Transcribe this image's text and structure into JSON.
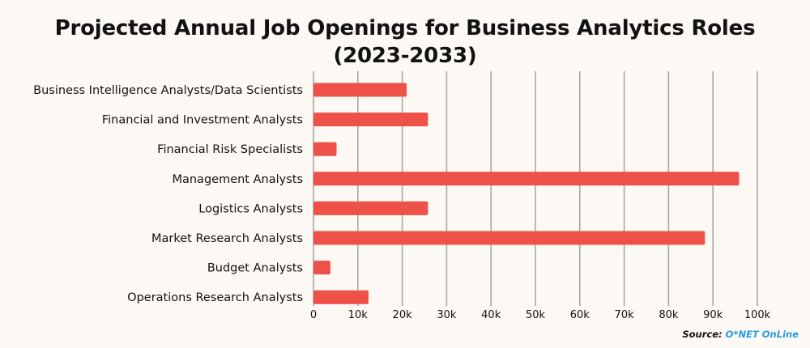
{
  "title_line1": "Projected Annual Job Openings for Business Analytics Roles",
  "title_line2": "(2023-2033)",
  "source_label": "Source:",
  "source_name": "O*NET OnLine",
  "colors": {
    "bar": "#ee5147",
    "grid": "#a8a8a8",
    "background": "#fcf8f4",
    "source_link": "#2a9be0"
  },
  "chart_data": {
    "type": "bar",
    "orientation": "horizontal",
    "categories": [
      "Business Intelligence Analysts/Data Scientists",
      "Financial and Investment Analysts",
      "Financial Risk Specialists",
      "Management Analysts",
      "Logistics Analysts",
      "Market Research Analysts",
      "Budget Analysts",
      "Operations Research Analysts"
    ],
    "values": [
      21000,
      25800,
      5200,
      95900,
      25800,
      88200,
      3800,
      12400
    ],
    "xlim": [
      0,
      100000
    ],
    "xticks": [
      0,
      10000,
      20000,
      30000,
      40000,
      50000,
      60000,
      70000,
      80000,
      90000,
      100000
    ],
    "xtick_labels": [
      "0",
      "10k",
      "20k",
      "30k",
      "40k",
      "50k",
      "60k",
      "70k",
      "80k",
      "90k",
      "100k"
    ],
    "grid": "vertical",
    "legend": "none"
  }
}
